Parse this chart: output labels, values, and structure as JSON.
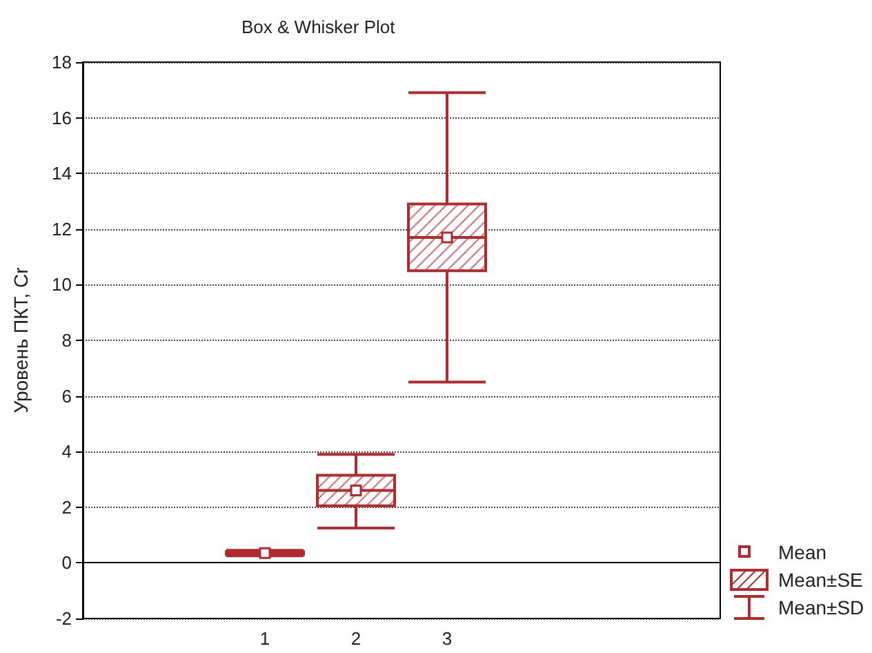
{
  "chart_data": {
    "type": "box",
    "title": "Box & Whisker Plot",
    "ylabel": "Уровень ПКТ, Сr",
    "categories": [
      null,
      null,
      "1",
      "2",
      "3",
      null,
      null,
      null
    ],
    "series": [
      {
        "color": "#b22a2e",
        "boxes": [
          null,
          null,
          {
            "low": 0.25,
            "q1": 0.3,
            "median": 0.35,
            "mean": 0.35,
            "q3": 0.4,
            "high": 0.45
          },
          {
            "low": 1.25,
            "q1": 2.05,
            "median": 2.6,
            "mean": 2.6,
            "q3": 3.15,
            "high": 3.9
          },
          {
            "low": 6.5,
            "q1": 10.5,
            "median": 11.7,
            "mean": 11.7,
            "q3": 12.9,
            "high": 16.9
          },
          null,
          null,
          null
        ]
      }
    ],
    "ylim": [
      -2,
      18
    ],
    "yticks": [
      -2,
      0,
      2,
      4,
      6,
      8,
      10,
      12,
      14,
      16,
      18
    ],
    "grid": "y",
    "marker": "square",
    "annotations": [
      "Mean",
      "Mean±SE",
      "Mean±SD"
    ]
  }
}
